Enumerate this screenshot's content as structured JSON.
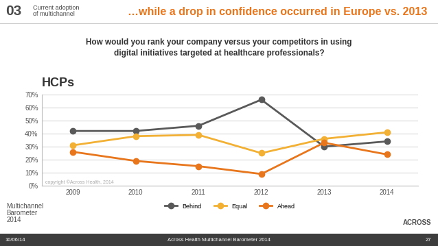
{
  "slide": {
    "section_number": "03",
    "section_name": [
      "Current adoption",
      "of multichannel"
    ],
    "headline": "…while a drop in confidence occurred in Europe vs. 2013",
    "question": [
      "How would you rank your company versus your competitors in using",
      "digital initiatives targeted at healthcare professionals?"
    ],
    "copyright": "copyright ©Across Health, 2014",
    "logo_left": [
      "Multichannel",
      "Barometer",
      "2014"
    ],
    "logo_right": "ACROSS",
    "footer_date": "10/06/14",
    "footer_center": "Across Health Multichannel Barometer 2014",
    "page_number": "27"
  },
  "chart_data": {
    "type": "line",
    "title": "HCPs",
    "categories": [
      "2009",
      "2010",
      "2011",
      "2012",
      "2013",
      "2014"
    ],
    "series": [
      {
        "name": "Behind",
        "color": "#595959",
        "marker": "o",
        "values": [
          42,
          42,
          46,
          66,
          30,
          34
        ]
      },
      {
        "name": "Equal",
        "color": "#f2b134",
        "marker": "o",
        "values": [
          31,
          38,
          39,
          25,
          36,
          41
        ]
      },
      {
        "name": "Ahead",
        "color": "#e8761c",
        "marker": "o",
        "values": [
          26,
          19,
          15,
          9,
          33,
          24
        ]
      }
    ],
    "ylim": [
      0,
      70
    ],
    "yticks": [
      {
        "value": 0,
        "label": "0%"
      },
      {
        "value": 10,
        "label": "10%"
      },
      {
        "value": 20,
        "label": "20%"
      },
      {
        "value": 30,
        "label": "30%"
      },
      {
        "value": 40,
        "label": "40%"
      },
      {
        "value": 50,
        "label": "50%"
      },
      {
        "value": 60,
        "label": "60%"
      },
      {
        "value": 70,
        "label": "70%"
      }
    ],
    "grid": true,
    "legend": "lower center"
  }
}
